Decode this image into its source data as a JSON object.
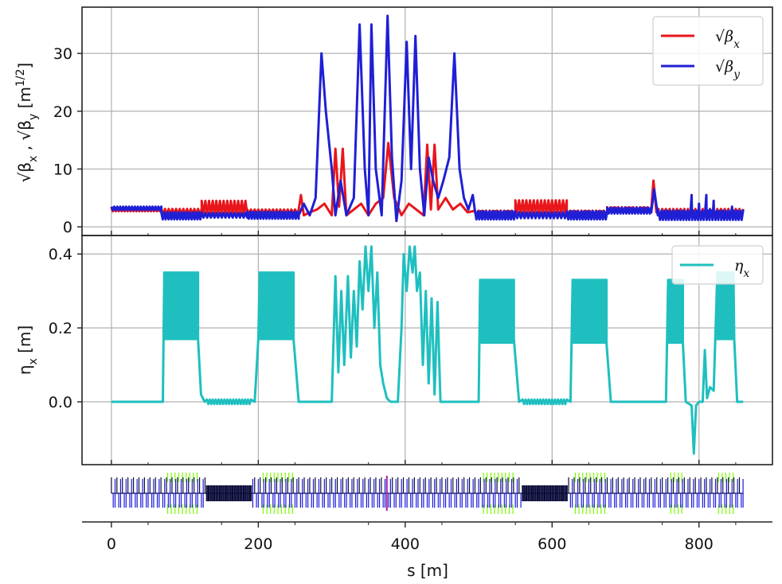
{
  "colors": {
    "beta_x": "#e8161b",
    "beta_y": "#1f1fd6",
    "eta_x": "#1fbfbf",
    "grid": "#b0b0b0",
    "axis": "#222222",
    "lattice_quad": "#1a1adb",
    "lattice_dipole": "#0b0b3a",
    "lattice_sext": "#7cfc00",
    "lattice_other": "#a020a0"
  },
  "chart_data": [
    {
      "type": "line",
      "panel": "beta",
      "ylabel": "√βx , √βy  [m^1/2]",
      "ylabel_parts": [
        "√β",
        "x",
        " , √β",
        "y",
        " [m",
        "1/2",
        "]"
      ],
      "xlim": [
        -40,
        900
      ],
      "ylim": [
        -1.5,
        38
      ],
      "yticks": [
        0,
        10,
        20,
        30
      ],
      "yticklabels": [
        "0",
        "10",
        "20",
        "30"
      ],
      "xticks": [
        0,
        200,
        400,
        600,
        800
      ],
      "grid": true,
      "legend": {
        "placement": "top-right",
        "entries": [
          "√βx",
          "√βy"
        ],
        "sub": [
          "x",
          "y"
        ]
      },
      "series": [
        {
          "name": "√βx",
          "segments": [
            {
              "x0": 0,
              "x1": 68,
              "base": 3.0,
              "amp": 0.3,
              "period": 4
            },
            {
              "x0": 68,
              "x1": 123,
              "base": 2.6,
              "amp": 0.5,
              "period": 5
            },
            {
              "x0": 123,
              "x1": 185,
              "base": 3.3,
              "amp": 1.2,
              "period": 5
            },
            {
              "x0": 185,
              "x1": 255,
              "base": 2.6,
              "amp": 0.4,
              "period": 5
            },
            {
              "x0": 495,
              "x1": 550,
              "base": 2.4,
              "amp": 0.4,
              "period": 5
            },
            {
              "x0": 550,
              "x1": 620,
              "base": 3.4,
              "amp": 1.2,
              "period": 5
            },
            {
              "x0": 620,
              "x1": 675,
              "base": 2.4,
              "amp": 0.4,
              "period": 5
            },
            {
              "x0": 675,
              "x1": 735,
              "base": 3.0,
              "amp": 0.4,
              "period": 5
            },
            {
              "x0": 745,
              "x1": 860,
              "base": 2.5,
              "amp": 0.6,
              "period": 5
            }
          ],
          "points": [
            [
              255,
              3
            ],
            [
              258,
              5.5
            ],
            [
              262,
              2
            ],
            [
              270,
              2.5
            ],
            [
              280,
              3
            ],
            [
              290,
              4
            ],
            [
              300,
              2
            ],
            [
              305,
              13.5
            ],
            [
              310,
              3.5
            ],
            [
              315,
              13.5
            ],
            [
              320,
              2
            ],
            [
              330,
              3
            ],
            [
              340,
              4
            ],
            [
              350,
              2
            ],
            [
              360,
              4
            ],
            [
              370,
              5
            ],
            [
              377,
              14.5
            ],
            [
              385,
              5
            ],
            [
              395,
              2
            ],
            [
              405,
              4
            ],
            [
              415,
              3
            ],
            [
              425,
              2
            ],
            [
              430,
              14.2
            ],
            [
              435,
              3
            ],
            [
              440,
              14.2
            ],
            [
              445,
              3
            ],
            [
              455,
              5
            ],
            [
              465,
              3
            ],
            [
              475,
              4
            ],
            [
              485,
              2.5
            ],
            [
              495,
              2.5
            ],
            [
              735,
              3
            ],
            [
              738,
              8
            ],
            [
              742,
              2.5
            ],
            [
              745,
              2.5
            ]
          ]
        },
        {
          "name": "√βy",
          "segments": [
            {
              "x0": 0,
              "x1": 68,
              "base": 3.2,
              "amp": 0.3,
              "period": 4
            },
            {
              "x0": 68,
              "x1": 123,
              "base": 1.9,
              "amp": 0.6,
              "period": 4
            },
            {
              "x0": 123,
              "x1": 185,
              "base": 2.0,
              "amp": 0.4,
              "period": 5
            },
            {
              "x0": 185,
              "x1": 255,
              "base": 2.0,
              "amp": 0.6,
              "period": 4
            },
            {
              "x0": 495,
              "x1": 550,
              "base": 2.0,
              "amp": 0.7,
              "period": 4
            },
            {
              "x0": 550,
              "x1": 620,
              "base": 2.0,
              "amp": 0.5,
              "period": 5
            },
            {
              "x0": 620,
              "x1": 675,
              "base": 2.0,
              "amp": 0.7,
              "period": 4
            },
            {
              "x0": 675,
              "x1": 735,
              "base": 2.8,
              "amp": 0.5,
              "period": 4
            },
            {
              "x0": 745,
              "x1": 860,
              "base": 2.0,
              "amp": 0.8,
              "period": 4
            }
          ],
          "points": [
            [
              255,
              2
            ],
            [
              262,
              4
            ],
            [
              270,
              2
            ],
            [
              278,
              5
            ],
            [
              286,
              30
            ],
            [
              292,
              20
            ],
            [
              300,
              10
            ],
            [
              305,
              2
            ],
            [
              312,
              8
            ],
            [
              320,
              2
            ],
            [
              330,
              5
            ],
            [
              338,
              35
            ],
            [
              345,
              10
            ],
            [
              350,
              2
            ],
            [
              354,
              35
            ],
            [
              360,
              10
            ],
            [
              368,
              2
            ],
            [
              376,
              36.5
            ],
            [
              382,
              12
            ],
            [
              388,
              1
            ],
            [
              395,
              8
            ],
            [
              402,
              32
            ],
            [
              408,
              10
            ],
            [
              414,
              33
            ],
            [
              420,
              10
            ],
            [
              426,
              2
            ],
            [
              432,
              12
            ],
            [
              438,
              8
            ],
            [
              445,
              5
            ],
            [
              452,
              8
            ],
            [
              460,
              12
            ],
            [
              467,
              30
            ],
            [
              474,
              10
            ],
            [
              480,
              5
            ],
            [
              486,
              3
            ],
            [
              492,
              5.5
            ],
            [
              498,
              2
            ],
            [
              735,
              2.5
            ],
            [
              739,
              6.5
            ],
            [
              744,
              2
            ],
            [
              770,
              2.5
            ],
            [
              790,
              5.5
            ],
            [
              800,
              4
            ],
            [
              810,
              5.5
            ],
            [
              815,
              3
            ],
            [
              820,
              4.5
            ],
            [
              830,
              2.5
            ],
            [
              845,
              3.5
            ],
            [
              855,
              2
            ],
            [
              860,
              3
            ]
          ]
        }
      ]
    },
    {
      "type": "line",
      "panel": "dispersion",
      "ylabel": "ηx [m]",
      "ylabel_parts": [
        "η",
        "x",
        " [m]"
      ],
      "xlim": [
        -40,
        900
      ],
      "ylim": [
        -0.17,
        0.45
      ],
      "yticks": [
        0.0,
        0.2,
        0.4
      ],
      "yticklabels": [
        "0.0",
        "0.2",
        "0.4"
      ],
      "xticks": [
        0,
        200,
        400,
        600,
        800
      ],
      "grid": true,
      "legend": {
        "placement": "top-right",
        "entries": [
          "ηx"
        ],
        "sub": [
          "x"
        ]
      },
      "series": [
        {
          "name": "ηx",
          "segments": [
            {
              "x0": 72,
              "x1": 118,
              "base": 0.26,
              "amp": 0.09,
              "period": 2.2
            },
            {
              "x0": 202,
              "x1": 248,
              "base": 0.26,
              "amp": 0.09,
              "period": 2.2
            },
            {
              "x0": 502,
              "x1": 548,
              "base": 0.245,
              "amp": 0.085,
              "period": 2.2
            },
            {
              "x0": 628,
              "x1": 674,
              "base": 0.245,
              "amp": 0.085,
              "period": 2.2
            },
            {
              "x0": 758,
              "x1": 778,
              "base": 0.245,
              "amp": 0.085,
              "period": 2.2
            },
            {
              "x0": 825,
              "x1": 848,
              "base": 0.26,
              "amp": 0.09,
              "period": 2.2
            }
          ],
          "ripples": [
            {
              "x0": 130,
              "x1": 190,
              "amp": 0.006,
              "period": 4
            },
            {
              "x0": 560,
              "x1": 620,
              "amp": 0.006,
              "period": 4
            }
          ],
          "points": [
            [
              0,
              0
            ],
            [
              70,
              0
            ],
            [
              72,
              0.17
            ],
            [
              118,
              0.17
            ],
            [
              122,
              0.02
            ],
            [
              127,
              0
            ],
            [
              195,
              0
            ],
            [
              200,
              0.17
            ],
            [
              248,
              0.17
            ],
            [
              255,
              0
            ],
            [
              300,
              0
            ],
            [
              305,
              0.34
            ],
            [
              309,
              0.08
            ],
            [
              313,
              0.3
            ],
            [
              317,
              0.1
            ],
            [
              322,
              0.34
            ],
            [
              326,
              0.12
            ],
            [
              330,
              0.3
            ],
            [
              334,
              0.15
            ],
            [
              338,
              0.38
            ],
            [
              342,
              0.25
            ],
            [
              346,
              0.42
            ],
            [
              350,
              0.3
            ],
            [
              354,
              0.42
            ],
            [
              358,
              0.2
            ],
            [
              362,
              0.35
            ],
            [
              366,
              0.1
            ],
            [
              370,
              0.05
            ],
            [
              375,
              0.01
            ],
            [
              380,
              0
            ],
            [
              390,
              0
            ],
            [
              395,
              0.2
            ],
            [
              398,
              0.4
            ],
            [
              402,
              0.3
            ],
            [
              406,
              0.42
            ],
            [
              410,
              0.35
            ],
            [
              413,
              0.42
            ],
            [
              416,
              0.3
            ],
            [
              420,
              0.35
            ],
            [
              424,
              0.1
            ],
            [
              428,
              0.3
            ],
            [
              432,
              0.05
            ],
            [
              436,
              0.28
            ],
            [
              440,
              0.02
            ],
            [
              444,
              0.27
            ],
            [
              448,
              0
            ],
            [
              500,
              0
            ],
            [
              502,
              0.17
            ],
            [
              548,
              0.17
            ],
            [
              555,
              0
            ],
            [
              625,
              0
            ],
            [
              628,
              0.16
            ],
            [
              674,
              0.16
            ],
            [
              680,
              0
            ],
            [
              755,
              0
            ],
            [
              758,
              0.16
            ],
            [
              778,
              0.16
            ],
            [
              782,
              0
            ],
            [
              790,
              -0.01
            ],
            [
              793,
              -0.14
            ],
            [
              796,
              -0.01
            ],
            [
              800,
              0
            ],
            [
              805,
              0
            ],
            [
              808,
              0.14
            ],
            [
              811,
              0.01
            ],
            [
              815,
              0.04
            ],
            [
              820,
              0.03
            ],
            [
              825,
              0.17
            ],
            [
              848,
              0.17
            ],
            [
              852,
              0
            ],
            [
              860,
              0
            ]
          ]
        }
      ]
    },
    {
      "type": "lattice",
      "panel": "lattice",
      "xlabel": "s [m]",
      "xlim": [
        -40,
        900
      ],
      "xticks": [
        0,
        200,
        400,
        600,
        800
      ],
      "xticklabels": [
        "0",
        "200",
        "400",
        "600",
        "800"
      ],
      "span": [
        0,
        860
      ],
      "element_spacing_m": 2.5
    }
  ]
}
